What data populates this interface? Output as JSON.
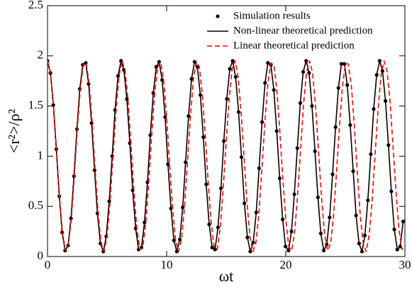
{
  "chart_data": {
    "type": "line",
    "xlabel": "ωt",
    "ylabel": "<r²>/ρ²",
    "xlim": [
      0,
      30
    ],
    "xticks": [
      0,
      10,
      20,
      30
    ],
    "ylim": [
      0,
      2.5
    ],
    "yticks": [
      0,
      0.5,
      1,
      1.5,
      2,
      2.5
    ],
    "legend": "upper-right",
    "series": [
      {
        "name": "Simulation results",
        "style": "markers",
        "color": "#000000",
        "x": [
          0,
          0.25,
          0.49,
          0.74,
          0.99,
          1.23,
          1.48,
          1.73,
          1.97,
          2.22,
          2.47,
          2.71,
          2.96,
          3.21,
          3.45,
          3.7,
          3.95,
          4.19,
          4.44,
          4.69,
          4.93,
          5.18,
          5.43,
          5.67,
          5.92,
          6.17,
          6.41,
          6.66,
          6.91,
          7.15,
          7.4,
          7.65,
          7.89,
          8.14,
          8.39,
          8.63,
          8.88,
          9.13,
          9.37,
          9.62,
          9.87,
          10.11,
          10.36,
          10.61,
          10.85,
          11.1,
          11.35,
          11.59,
          11.84,
          12.09,
          12.34,
          12.58,
          12.83,
          13.08,
          13.32,
          13.57,
          13.82,
          14.06,
          14.31,
          14.56,
          14.8,
          15.05,
          15.3,
          15.54,
          15.79,
          16.04,
          16.28,
          16.53,
          16.78,
          17.02,
          17.27,
          17.52,
          17.76,
          18.01,
          18.26,
          18.5,
          18.75,
          19,
          19.24,
          19.49,
          19.74,
          19.98,
          20.23,
          20.48,
          20.72,
          20.97,
          21.22,
          21.46,
          21.71,
          21.96,
          22.2,
          22.45,
          22.7,
          22.94,
          23.19,
          23.44,
          23.68,
          23.93,
          24.18,
          24.42,
          24.67,
          24.92,
          25.16,
          25.41,
          25.66,
          25.9,
          26.15,
          26.4,
          26.64,
          26.89,
          27.14,
          27.38,
          27.63,
          27.88,
          28.12,
          28.37,
          28.62,
          28.86,
          29.11,
          29.36,
          29.6,
          29.85
        ],
        "values": [
          1.95,
          1.83,
          1.51,
          1.07,
          0.6,
          0.24,
          0.06,
          0.11,
          0.38,
          0.8,
          1.27,
          1.67,
          1.91,
          1.93,
          1.72,
          1.33,
          0.86,
          0.43,
          0.13,
          0.05,
          0.2,
          0.55,
          1,
          1.46,
          1.8,
          1.95,
          1.86,
          1.57,
          1.13,
          0.66,
          0.28,
          0.07,
          0.09,
          0.34,
          0.74,
          1.21,
          1.63,
          1.89,
          1.94,
          1.76,
          1.39,
          0.92,
          0.48,
          0.16,
          0.05,
          0.17,
          0.49,
          0.94,
          1.4,
          1.77,
          1.94,
          1.89,
          1.61,
          1.19,
          0.72,
          0.32,
          0.09,
          0.07,
          0.29,
          0.68,
          1.15,
          1.57,
          1.87,
          1.95,
          1.79,
          1.44,
          0.99,
          0.53,
          0.19,
          0.05,
          0.14,
          0.44,
          0.88,
          1.34,
          1.73,
          1.93,
          1.91,
          1.66,
          1.25,
          0.78,
          0.37,
          0.1,
          0.06,
          0.25,
          0.62,
          1.08,
          1.53,
          1.84,
          1.95,
          1.83,
          1.5,
          1.05,
          0.59,
          0.23,
          0.06,
          0.12,
          0.39,
          0.82,
          1.29,
          1.68,
          1.92,
          1.92,
          1.71,
          1.31,
          0.85,
          0.41,
          0.13,
          0.05,
          0.21,
          0.56,
          1.02,
          1.47,
          1.81,
          1.95,
          1.85,
          1.55,
          1.11,
          0.65,
          0.27,
          0.07,
          0.1,
          0.35
        ]
      },
      {
        "name": "Non-linear theoretical prediction",
        "style": "solid",
        "color": "#000000",
        "x": [
          0,
          0.25,
          0.49,
          0.74,
          0.99,
          1.23,
          1.48,
          1.73,
          1.97,
          2.22,
          2.47,
          2.71,
          2.96,
          3.21,
          3.45,
          3.7,
          3.95,
          4.19,
          4.44,
          4.69,
          4.93,
          5.18,
          5.43,
          5.67,
          5.92,
          6.17,
          6.41,
          6.66,
          6.91,
          7.15,
          7.4,
          7.65,
          7.89,
          8.14,
          8.39,
          8.63,
          8.88,
          9.13,
          9.37,
          9.62,
          9.87,
          10.11,
          10.36,
          10.61,
          10.85,
          11.1,
          11.35,
          11.59,
          11.84,
          12.09,
          12.34,
          12.58,
          12.83,
          13.08,
          13.32,
          13.57,
          13.82,
          14.06,
          14.31,
          14.56,
          14.8,
          15.05,
          15.3,
          15.54,
          15.79,
          16.04,
          16.28,
          16.53,
          16.78,
          17.02,
          17.27,
          17.52,
          17.76,
          18.01,
          18.26,
          18.5,
          18.75,
          19,
          19.24,
          19.49,
          19.74,
          19.98,
          20.23,
          20.48,
          20.72,
          20.97,
          21.22,
          21.46,
          21.71,
          21.96,
          22.2,
          22.45,
          22.7,
          22.94,
          23.19,
          23.44,
          23.68,
          23.93,
          24.18,
          24.42,
          24.67,
          24.92,
          25.16,
          25.41,
          25.66,
          25.9,
          26.15,
          26.4,
          26.64,
          26.89,
          27.14,
          27.38,
          27.63,
          27.88,
          28.12,
          28.37,
          28.62,
          28.86,
          29.11,
          29.36,
          29.6,
          29.85
        ],
        "values": [
          1.95,
          1.83,
          1.51,
          1.07,
          0.6,
          0.24,
          0.06,
          0.11,
          0.38,
          0.8,
          1.27,
          1.67,
          1.91,
          1.93,
          1.72,
          1.33,
          0.86,
          0.43,
          0.13,
          0.05,
          0.2,
          0.55,
          1,
          1.46,
          1.8,
          1.95,
          1.86,
          1.57,
          1.13,
          0.66,
          0.28,
          0.07,
          0.09,
          0.34,
          0.74,
          1.21,
          1.63,
          1.89,
          1.94,
          1.76,
          1.39,
          0.92,
          0.48,
          0.16,
          0.05,
          0.17,
          0.49,
          0.94,
          1.4,
          1.77,
          1.94,
          1.89,
          1.61,
          1.19,
          0.72,
          0.32,
          0.09,
          0.07,
          0.29,
          0.68,
          1.15,
          1.57,
          1.87,
          1.95,
          1.79,
          1.44,
          0.99,
          0.53,
          0.19,
          0.05,
          0.14,
          0.44,
          0.88,
          1.34,
          1.73,
          1.93,
          1.91,
          1.66,
          1.25,
          0.78,
          0.37,
          0.1,
          0.06,
          0.25,
          0.62,
          1.08,
          1.53,
          1.84,
          1.95,
          1.83,
          1.5,
          1.05,
          0.59,
          0.23,
          0.06,
          0.12,
          0.39,
          0.82,
          1.29,
          1.68,
          1.92,
          1.92,
          1.71,
          1.31,
          0.85,
          0.41,
          0.13,
          0.05,
          0.21,
          0.56,
          1.02,
          1.47,
          1.81,
          1.95,
          1.85,
          1.55,
          1.11,
          0.65,
          0.27,
          0.07,
          0.1,
          0.35
        ]
      },
      {
        "name": "Linear theoretical prediction",
        "style": "dashed",
        "color": "#ff0000",
        "x": [
          0,
          0.25,
          0.5,
          0.75,
          1,
          1.25,
          1.5,
          1.75,
          2,
          2.25,
          2.5,
          2.75,
          3,
          3.25,
          3.5,
          3.75,
          4,
          4.25,
          4.5,
          4.75,
          5,
          5.25,
          5.5,
          5.75,
          6,
          6.25,
          6.5,
          6.75,
          7,
          7.25,
          7.5,
          7.75,
          8,
          8.25,
          8.5,
          8.75,
          9,
          9.25,
          9.5,
          9.75,
          10,
          10.25,
          10.5,
          10.75,
          11,
          11.25,
          11.5,
          11.75,
          12,
          12.25,
          12.5,
          12.75,
          13,
          13.25,
          13.5,
          13.75,
          14,
          14.25,
          14.5,
          14.75,
          15,
          15.25,
          15.5,
          15.75,
          16,
          16.25,
          16.5,
          16.75,
          17,
          17.25,
          17.5,
          17.75,
          18,
          18.25,
          18.5,
          18.75,
          19,
          19.25,
          19.5,
          19.75,
          20,
          20.25,
          20.5,
          20.75,
          21,
          21.25,
          21.5,
          21.75,
          22,
          22.25,
          22.5,
          22.75,
          23,
          23.25,
          23.5,
          23.75,
          24,
          24.25,
          24.5,
          24.75,
          25,
          25.25,
          25.5,
          25.75,
          26,
          26.25,
          26.5,
          26.75,
          27,
          27.25,
          27.5,
          27.75,
          28,
          28.25,
          28.5,
          28.75,
          29,
          29.25,
          29.5,
          29.75,
          30
        ],
        "values": [
          1.95,
          1.83,
          1.51,
          1.07,
          0.6,
          0.24,
          0.06,
          0.11,
          0.38,
          0.8,
          1.27,
          1.67,
          1.91,
          1.93,
          1.72,
          1.33,
          0.86,
          0.43,
          0.13,
          0.05,
          0.2,
          0.55,
          1,
          1.46,
          1.8,
          1.95,
          1.86,
          1.57,
          1.13,
          0.66,
          0.28,
          0.07,
          0.09,
          0.34,
          0.74,
          1.21,
          1.63,
          1.89,
          1.94,
          1.76,
          1.39,
          0.92,
          0.48,
          0.16,
          0.05,
          0.17,
          0.49,
          0.94,
          1.4,
          1.77,
          1.94,
          1.89,
          1.61,
          1.19,
          0.72,
          0.32,
          0.09,
          0.07,
          0.29,
          0.68,
          1.15,
          1.57,
          1.87,
          1.95,
          1.79,
          1.44,
          0.99,
          0.53,
          0.19,
          0.05,
          0.14,
          0.44,
          0.88,
          1.34,
          1.73,
          1.93,
          1.91,
          1.66,
          1.25,
          0.78,
          0.37,
          0.1,
          0.06,
          0.25,
          0.62,
          1.08,
          1.53,
          1.84,
          1.95,
          1.83,
          1.5,
          1.05,
          0.59,
          0.23,
          0.06,
          0.12,
          0.39,
          0.82,
          1.29,
          1.68,
          1.92,
          1.92,
          1.71,
          1.31,
          0.85,
          0.41,
          0.13,
          0.05,
          0.21,
          0.56,
          1.02,
          1.47,
          1.81,
          1.95,
          1.85,
          1.55,
          1.11,
          0.65,
          0.27,
          0.07,
          0.1
        ]
      }
    ]
  }
}
